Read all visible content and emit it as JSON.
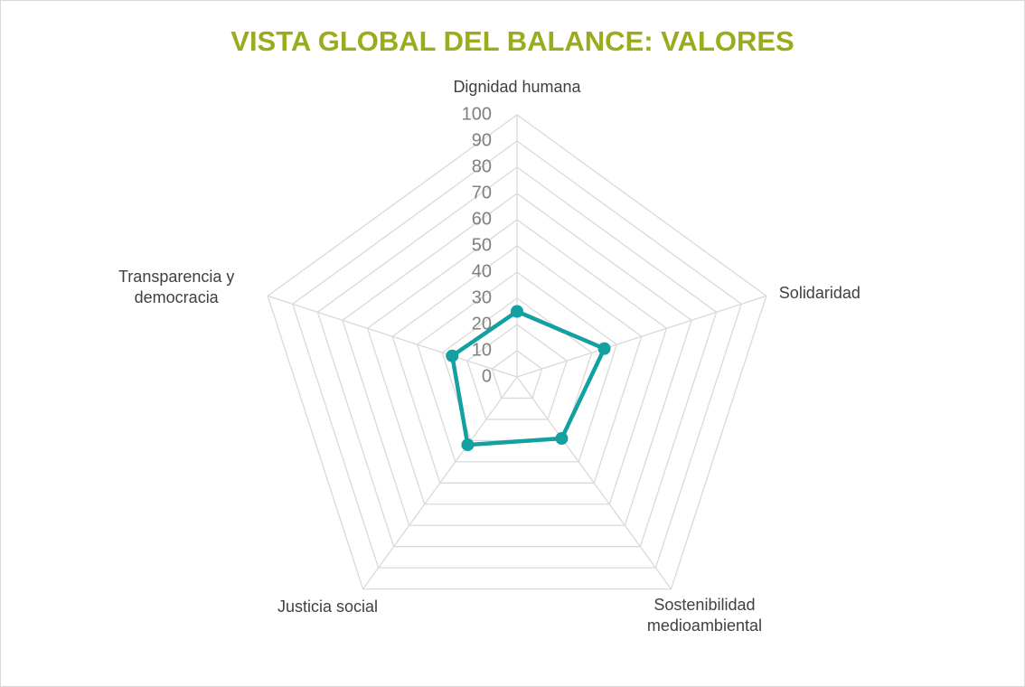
{
  "chart_data": {
    "type": "radar",
    "title": "VISTA GLOBAL DEL BALANCE: VALORES",
    "categories": [
      "Dignidad humana",
      "Solidaridad",
      "Sostenibilidad medioambiental",
      "Justicia social",
      "Transparencia y democracia"
    ],
    "series": [
      {
        "name": "Valores",
        "color": "#14a0a0",
        "values": [
          25,
          35,
          29,
          32,
          26
        ]
      }
    ],
    "ylim": [
      0,
      100
    ],
    "yticks": [
      0,
      10,
      20,
      30,
      40,
      50,
      60,
      70,
      80,
      90,
      100
    ],
    "grid": true
  }
}
